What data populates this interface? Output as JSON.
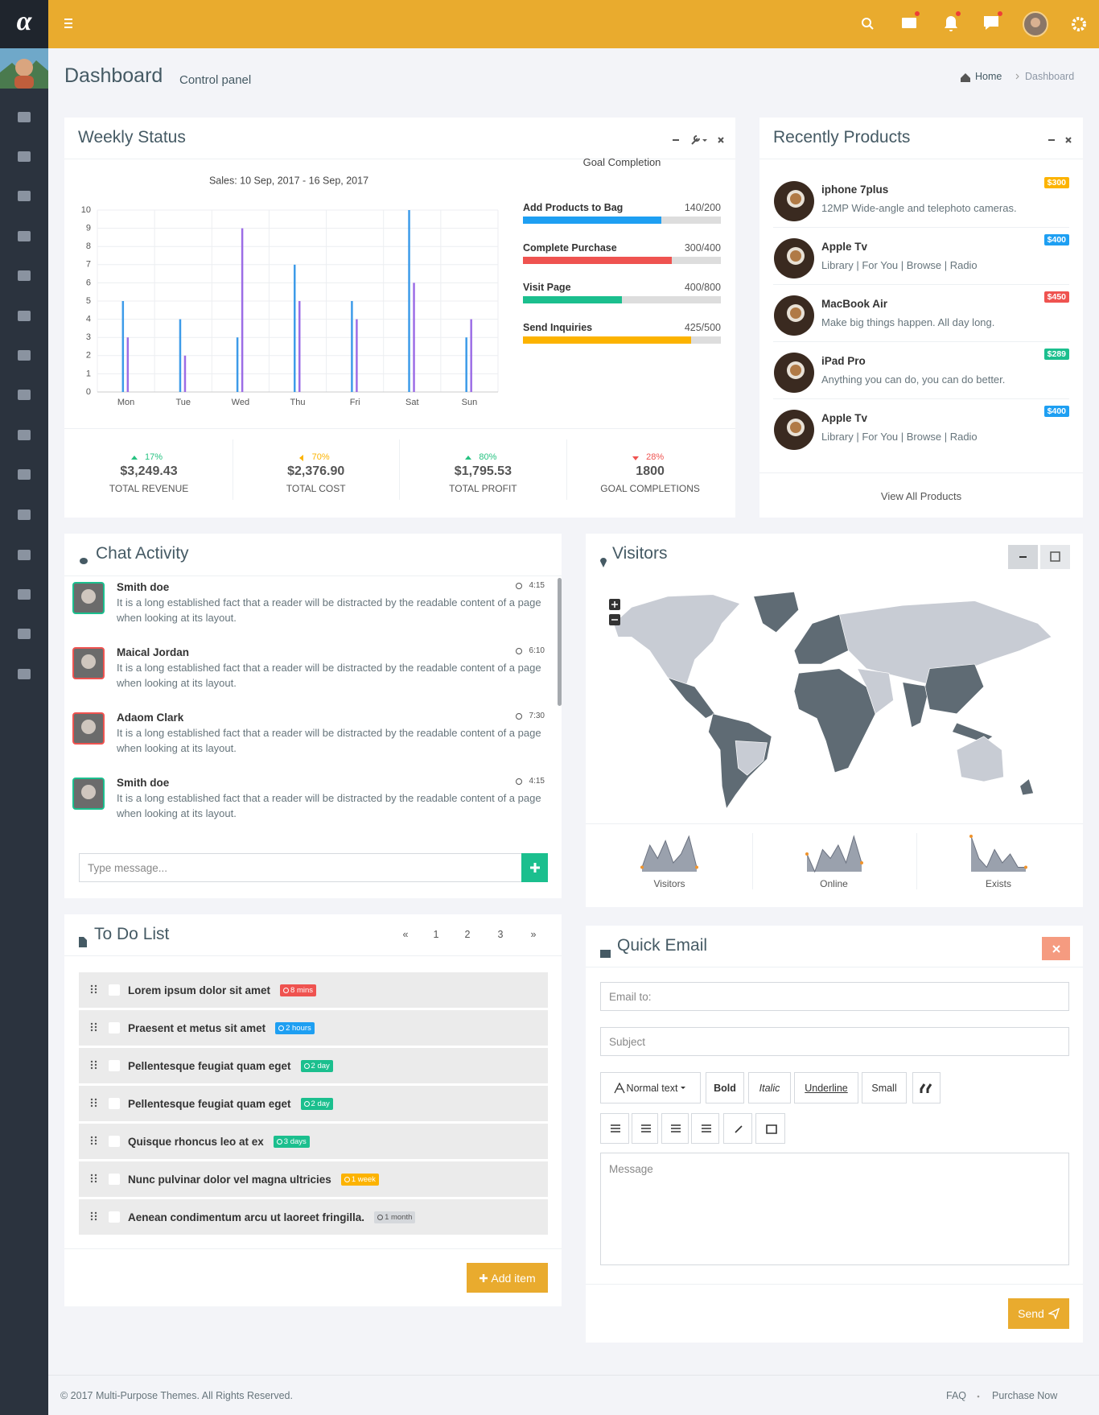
{
  "sidebar": {
    "logo": "α"
  },
  "header": {
    "title": "Dashboard",
    "subtitle": "Control panel",
    "breadcrumb": [
      "Home",
      "Dashboard"
    ]
  },
  "weekly_status": {
    "title": "Weekly Status",
    "goals": {
      "title": "Goal Completion",
      "items": [
        {
          "label": "Add Products to Bag",
          "progress_label": "140/200",
          "value": 140,
          "max": 200,
          "color": "#1e9ff2"
        },
        {
          "label": "Complete Purchase",
          "progress_label": "300/400",
          "value": 300,
          "max": 400,
          "color": "#ef5350"
        },
        {
          "label": "Visit Page",
          "progress_label": "400/800",
          "value": 400,
          "max": 800,
          "color": "#1bbf8e"
        },
        {
          "label": "Send Inquiries",
          "progress_label": "425/500",
          "value": 425,
          "max": 500,
          "color": "#fcb300"
        }
      ]
    },
    "stats": [
      {
        "change": "17%",
        "direction": "up",
        "color": "#26c281",
        "value": "$3,249.43",
        "label": "TOTAL REVENUE"
      },
      {
        "change": "70%",
        "direction": "left",
        "color": "#fcb300",
        "value": "$2,376.90",
        "label": "TOTAL COST"
      },
      {
        "change": "80%",
        "direction": "up",
        "color": "#26c281",
        "value": "$1,795.53",
        "label": "TOTAL PROFIT"
      },
      {
        "change": "28%",
        "direction": "down",
        "color": "#ef5350",
        "value": "1800",
        "label": "GOAL COMPLETIONS"
      }
    ]
  },
  "chart_data": [
    {
      "type": "bar",
      "title": "Sales: 10 Sep, 2017 - 16 Sep, 2017",
      "categories": [
        "Mon",
        "Tue",
        "Wed",
        "Thu",
        "Fri",
        "Sat",
        "Sun"
      ],
      "series": [
        {
          "color": "#3d9be9",
          "values": [
            5,
            4,
            3,
            7,
            5,
            10,
            3
          ]
        },
        {
          "color": "#9c6de6",
          "values": [
            3,
            2,
            9,
            5,
            4,
            6,
            4
          ]
        }
      ],
      "ylim": [
        0,
        10
      ],
      "yticks": [
        0,
        1,
        2,
        3,
        4,
        5,
        6,
        7,
        8,
        9,
        10
      ],
      "grid": true
    },
    {
      "type": "area",
      "title": "Visitors",
      "color": "#9aa1ad",
      "spot_color": "#f0932b",
      "values": [
        1,
        6,
        3,
        7,
        2,
        4,
        8,
        1
      ]
    },
    {
      "type": "area",
      "title": "Online",
      "color": "#9aa1ad",
      "spot_color": "#f0932b",
      "values": [
        4,
        0,
        5,
        3,
        6,
        2,
        8,
        2
      ]
    },
    {
      "type": "area",
      "title": "Exists",
      "color": "#9aa1ad",
      "spot_color": "#f0932b",
      "values": [
        8,
        3,
        1,
        5,
        2,
        4,
        1,
        1
      ]
    }
  ],
  "products": {
    "title": "Recently Products",
    "items": [
      {
        "name": "iphone 7plus",
        "description": "12MP Wide-angle and telephoto cameras.",
        "price": "$300",
        "price_color": "#fcb300"
      },
      {
        "name": "Apple Tv",
        "description": "Library | For You | Browse | Radio",
        "price": "$400",
        "price_color": "#1e9ff2"
      },
      {
        "name": "MacBook Air",
        "description": "Make big things happen. All day long.",
        "price": "$450",
        "price_color": "#ef5350"
      },
      {
        "name": "iPad Pro",
        "description": "Anything you can do, you can do better.",
        "price": "$289",
        "price_color": "#1bbf8e"
      },
      {
        "name": "Apple Tv",
        "description": "Library | For You | Browse | Radio",
        "price": "$400",
        "price_color": "#1e9ff2"
      }
    ],
    "view_all": "View All Products"
  },
  "chat": {
    "title": "Chat Activity",
    "messages": [
      {
        "name": "Smith doe",
        "time": "4:15",
        "text": "It is a long established fact that a reader will be distracted by the readable content of a page when looking at its layout.",
        "border_color": "#1bbf8e"
      },
      {
        "name": "Maical Jordan",
        "time": "6:10",
        "text": "It is a long established fact that a reader will be distracted by the readable content of a page when looking at its layout.",
        "border_color": "#ef5350"
      },
      {
        "name": "Adaom Clark",
        "time": "7:30",
        "text": "It is a long established fact that a reader will be distracted by the readable content of a page when looking at its layout.",
        "border_color": "#ef5350"
      },
      {
        "name": "Smith doe",
        "time": "4:15",
        "text": "It is a long established fact that a reader will be distracted by the readable content of a page when looking at its layout.",
        "border_color": "#1bbf8e"
      }
    ],
    "input_placeholder": "Type message..."
  },
  "visitors": {
    "title": "Visitors"
  },
  "todo": {
    "title": "To Do List",
    "pagination": [
      "«",
      "1",
      "2",
      "3",
      "»"
    ],
    "items": [
      {
        "text": "Lorem ipsum dolor sit amet",
        "badge": "8 mins",
        "badge_color": "#ef5350",
        "badge_text_color": "#ffffff"
      },
      {
        "text": "Praesent et metus sit amet",
        "badge": "2 hours",
        "badge_color": "#1e9ff2",
        "badge_text_color": "#ffffff"
      },
      {
        "text": "Pellentesque feugiat quam eget",
        "badge": "2 day",
        "badge_color": "#1bbf8e",
        "badge_text_color": "#ffffff"
      },
      {
        "text": "Pellentesque feugiat quam eget",
        "badge": "2 day",
        "badge_color": "#1bbf8e",
        "badge_text_color": "#ffffff"
      },
      {
        "text": "Quisque rhoncus leo at ex",
        "badge": "3 days",
        "badge_color": "#1bbf8e",
        "badge_text_color": "#ffffff"
      },
      {
        "text": "Nunc pulvinar dolor vel magna ultricies",
        "badge": "1 week",
        "badge_color": "#fcb300",
        "badge_text_color": "#ffffff"
      },
      {
        "text": "Aenean condimentum arcu ut laoreet fringilla.",
        "badge": "1 month",
        "badge_color": "#d5d8dc",
        "badge_text_color": "#555555"
      }
    ],
    "add_button": "Add item"
  },
  "quick_email": {
    "title": "Quick Email",
    "email_placeholder": "Email to:",
    "subject_placeholder": "Subject",
    "toolbar": [
      "Normal text",
      "Bold",
      "Italic",
      "Underline",
      "Small"
    ],
    "message_placeholder": "Message",
    "send_button": "Send"
  },
  "footer": {
    "copyright": "© 2017 Multi-Purpose Themes. All Rights Reserved.",
    "links": [
      "FAQ",
      "Purchase Now"
    ]
  }
}
